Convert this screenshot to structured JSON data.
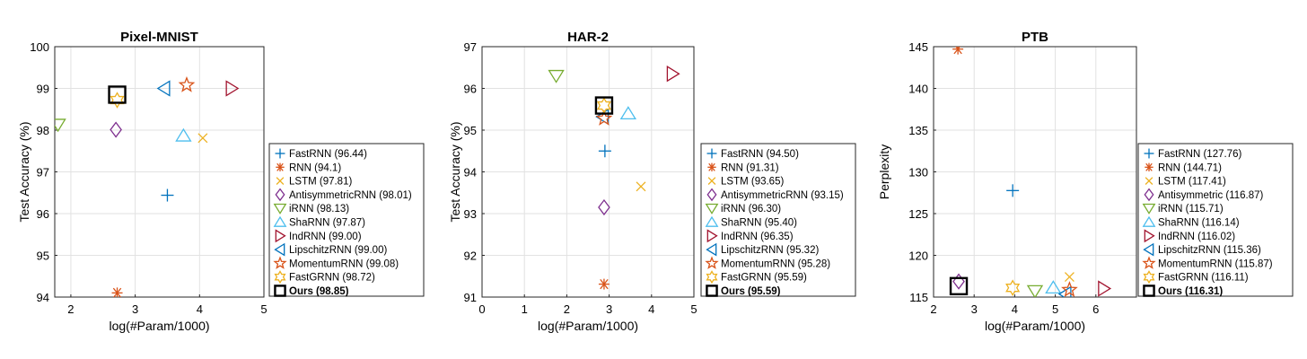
{
  "colors": {
    "FastRNN": "#0072BD",
    "RNN": "#D95319",
    "LSTM": "#EDB120",
    "AntisymmetricRNN": "#7E2F8E",
    "iRNN": "#77AC30",
    "ShaRNN": "#4DBEEE",
    "IndRNN": "#A2142F",
    "LipschitzRNN": "#0072BD",
    "MomentumRNN": "#D95319",
    "FastGRNN": "#EDB120",
    "Ours": "#000000"
  },
  "marker_icons": {
    "FastRNN": "plus-icon",
    "RNN": "asterisk-icon",
    "LSTM": "cross-icon",
    "AntisymmetricRNN": "diamond-icon",
    "iRNN": "triangle-down-icon",
    "ShaRNN": "triangle-up-icon",
    "IndRNN": "triangle-right-icon",
    "LipschitzRNN": "triangle-left-icon",
    "MomentumRNN": "pentagram-icon",
    "FastGRNN": "hexagram-icon",
    "Ours": "square-icon"
  },
  "chart_data": [
    {
      "type": "scatter",
      "title": "Pixel-MNIST",
      "xlabel": "log(#Param/1000)",
      "ylabel": "Test Accuracy (%)",
      "xlim": [
        1.75,
        5
      ],
      "ylim": [
        94,
        100
      ],
      "xticks": [
        2,
        3,
        4,
        5
      ],
      "yticks": [
        94,
        95,
        96,
        97,
        98,
        99,
        100
      ],
      "legend_position": "outside-right",
      "series": [
        {
          "name": "FastRNN",
          "legend": "FastRNN (96.44)",
          "x": 3.5,
          "y": 96.44
        },
        {
          "name": "RNN",
          "legend": "RNN (94.1)",
          "x": 2.72,
          "y": 94.1
        },
        {
          "name": "LSTM",
          "legend": "LSTM (97.81)",
          "x": 4.05,
          "y": 97.81
        },
        {
          "name": "AntisymmetricRNN",
          "legend": "AntisymmetricRNN (98.01)",
          "x": 2.7,
          "y": 98.01
        },
        {
          "name": "iRNN",
          "legend": "iRNN (98.13)",
          "x": 1.8,
          "y": 98.13
        },
        {
          "name": "ShaRNN",
          "legend": "ShaRNN (97.87)",
          "x": 3.75,
          "y": 97.87
        },
        {
          "name": "IndRNN",
          "legend": "IndRNN (99.00)",
          "x": 4.5,
          "y": 99.0
        },
        {
          "name": "LipschitzRNN",
          "legend": "LipschitzRNN (99.00)",
          "x": 3.45,
          "y": 99.0
        },
        {
          "name": "MomentumRNN",
          "legend": "MomentumRNN (99.08)",
          "x": 3.8,
          "y": 99.08
        },
        {
          "name": "FastGRNN",
          "legend": "FastGRNN (98.72)",
          "x": 2.72,
          "y": 98.72
        },
        {
          "name": "Ours",
          "legend": "Ours (98.85)",
          "x": 2.72,
          "y": 98.85
        }
      ]
    },
    {
      "type": "scatter",
      "title": "HAR-2",
      "xlabel": "log(#Param/1000)",
      "ylabel": "Test Accuracy (%)",
      "xlim": [
        0,
        5
      ],
      "ylim": [
        91,
        97
      ],
      "xticks": [
        0,
        1,
        2,
        3,
        4,
        5
      ],
      "yticks": [
        91,
        92,
        93,
        94,
        95,
        96,
        97
      ],
      "legend_position": "outside-right",
      "series": [
        {
          "name": "FastRNN",
          "legend": "FastRNN (94.50)",
          "x": 2.9,
          "y": 94.5
        },
        {
          "name": "RNN",
          "legend": "RNN (91.31)",
          "x": 2.88,
          "y": 91.31
        },
        {
          "name": "LSTM",
          "legend": "LSTM (93.65)",
          "x": 3.75,
          "y": 93.65
        },
        {
          "name": "AntisymmetricRNN",
          "legend": "AntisymmetricRNN (93.15)",
          "x": 2.88,
          "y": 93.15
        },
        {
          "name": "iRNN",
          "legend": "iRNN (96.30)",
          "x": 1.75,
          "y": 96.3
        },
        {
          "name": "ShaRNN",
          "legend": "ShaRNN (95.40)",
          "x": 3.45,
          "y": 95.4
        },
        {
          "name": "IndRNN",
          "legend": "IndRNN (96.35)",
          "x": 4.5,
          "y": 96.35
        },
        {
          "name": "LipschitzRNN",
          "legend": "LipschitzRNN (95.32)",
          "x": 2.85,
          "y": 95.32
        },
        {
          "name": "MomentumRNN",
          "legend": "MomentumRNN (95.28)",
          "x": 2.88,
          "y": 95.28
        },
        {
          "name": "FastGRNN",
          "legend": "FastGRNN (95.59)",
          "x": 2.88,
          "y": 95.59
        },
        {
          "name": "Ours",
          "legend": "Ours (95.59)",
          "x": 2.88,
          "y": 95.59
        }
      ]
    },
    {
      "type": "scatter",
      "title": "PTB",
      "xlabel": "log(#Param/1000)",
      "ylabel": "Perplexity",
      "xlim": [
        2,
        7
      ],
      "ylim": [
        115,
        145
      ],
      "xticks": [
        2,
        3,
        4,
        5,
        6
      ],
      "yticks": [
        115,
        120,
        125,
        130,
        135,
        140,
        145
      ],
      "legend_position": "outside-right",
      "series": [
        {
          "name": "FastRNN",
          "legend": "FastRNN (127.76)",
          "x": 3.95,
          "y": 127.76
        },
        {
          "name": "RNN",
          "legend": "RNN (144.71)",
          "x": 2.6,
          "y": 144.71
        },
        {
          "name": "LSTM",
          "legend": "LSTM (117.41)",
          "x": 5.35,
          "y": 117.41
        },
        {
          "name": "AntisymmetricRNN",
          "legend": "Antisymmetric (116.87)",
          "x": 2.62,
          "y": 116.87
        },
        {
          "name": "iRNN",
          "legend": "iRNN (115.71)",
          "x": 4.5,
          "y": 115.71
        },
        {
          "name": "ShaRNN",
          "legend": "ShaRNN (116.14)",
          "x": 4.95,
          "y": 116.14
        },
        {
          "name": "IndRNN",
          "legend": "IndRNN (116.02)",
          "x": 6.2,
          "y": 116.02
        },
        {
          "name": "LipschitzRNN",
          "legend": "LipschitzRNN (115.36)",
          "x": 5.25,
          "y": 115.36
        },
        {
          "name": "MomentumRNN",
          "legend": "MomentumRNN (115.87)",
          "x": 5.35,
          "y": 115.87
        },
        {
          "name": "FastGRNN",
          "legend": "FastGRNN (116.11)",
          "x": 3.95,
          "y": 116.11
        },
        {
          "name": "Ours",
          "legend": "Ours (116.31)",
          "x": 2.62,
          "y": 116.31
        }
      ]
    }
  ]
}
